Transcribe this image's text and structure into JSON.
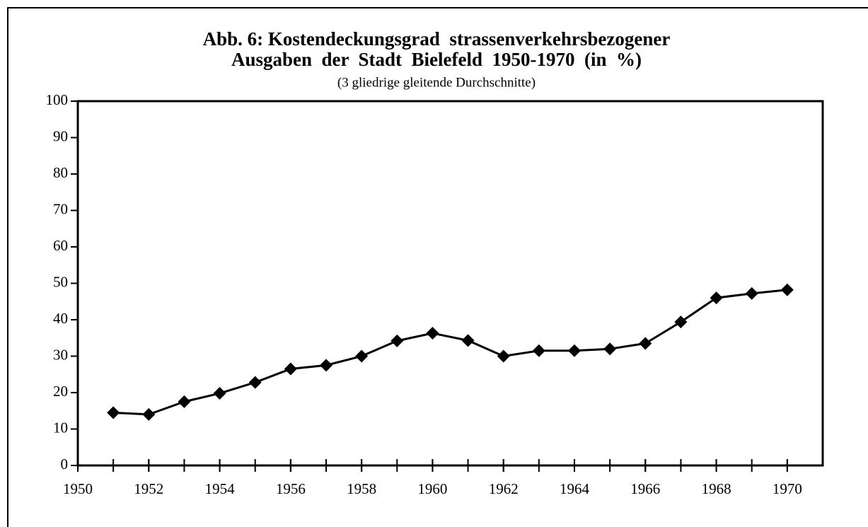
{
  "chart_data": {
    "type": "line",
    "title": [
      "Abb. 6: Kostendeckungsgrad  strassenverkehrsbezogener",
      "Ausgaben  der  Stadt  Bielefeld  1950-1970  (in  %)"
    ],
    "subtitle": "(3 gliedrige gleitende Durchschnitte)",
    "x": [
      1951,
      1952,
      1953,
      1954,
      1955,
      1956,
      1957,
      1958,
      1959,
      1960,
      1961,
      1962,
      1963,
      1964,
      1965,
      1966,
      1967,
      1968,
      1969,
      1970
    ],
    "series": [
      {
        "color": "#000000",
        "values": [
          14.5,
          14.0,
          17.5,
          19.8,
          22.8,
          26.5,
          27.5,
          30,
          34.2,
          36.3,
          34.3,
          30,
          31.5,
          31.5,
          32,
          33.5,
          39.4,
          46,
          47.2,
          48.2
        ]
      }
    ],
    "xlim": [
      1950,
      1971
    ],
    "xticks": [
      1950,
      1952,
      1954,
      1956,
      1958,
      1960,
      1962,
      1964,
      1966,
      1968,
      1970
    ],
    "ylim": [
      0,
      100
    ],
    "yticks": [
      0,
      10,
      20,
      30,
      40,
      50,
      60,
      70,
      80,
      90,
      100
    ],
    "grid": false
  }
}
